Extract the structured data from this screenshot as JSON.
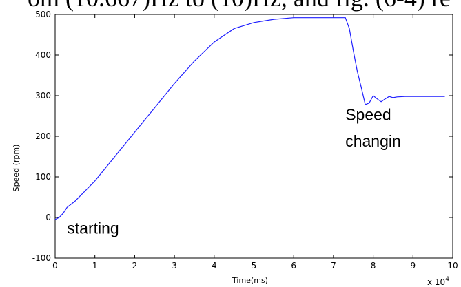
{
  "caption_fragment": "om (10.667)Hz to (10)Hz, and fig. (6-4) re",
  "chart_data": {
    "type": "line",
    "title": "",
    "xlabel": "Time(ms)",
    "ylabel": "Speed (rpm)",
    "x_multiplier": "x 10",
    "x_multiplier_exp": "4",
    "xlim": [
      0,
      10
    ],
    "ylim": [
      -100,
      500
    ],
    "xticks": [
      "0",
      "1",
      "2",
      "3",
      "4",
      "5",
      "6",
      "7",
      "8",
      "9",
      "10"
    ],
    "yticks": [
      "-100",
      "0",
      "100",
      "200",
      "300",
      "400",
      "500"
    ],
    "grid": false,
    "series": [
      {
        "color": "#1f1fff",
        "x": [
          0,
          0.1,
          0.2,
          0.3,
          0.5,
          0.7,
          1.0,
          1.5,
          2.0,
          2.5,
          3.0,
          3.5,
          4.0,
          4.5,
          5.0,
          5.5,
          6.0,
          6.5,
          7.0,
          7.3,
          7.4,
          7.5,
          7.6,
          7.7,
          7.8,
          7.9,
          8.0,
          8.1,
          8.2,
          8.3,
          8.4,
          8.5,
          8.6,
          8.8,
          9.0,
          9.3,
          9.6,
          9.8
        ],
        "y": [
          -5,
          0,
          10,
          25,
          40,
          60,
          90,
          150,
          210,
          270,
          330,
          385,
          432,
          465,
          480,
          488,
          492,
          492,
          492,
          492,
          465,
          410,
          360,
          320,
          278,
          282,
          300,
          292,
          285,
          292,
          298,
          295,
          297,
          298,
          298,
          298,
          298,
          298
        ]
      }
    ],
    "annotations": [
      {
        "text": "starting",
        "x": 0.3,
        "y": -40
      },
      {
        "text": "Speed",
        "x": 7.3,
        "y": 240
      },
      {
        "text": "changin",
        "x": 7.3,
        "y": 175
      }
    ]
  }
}
